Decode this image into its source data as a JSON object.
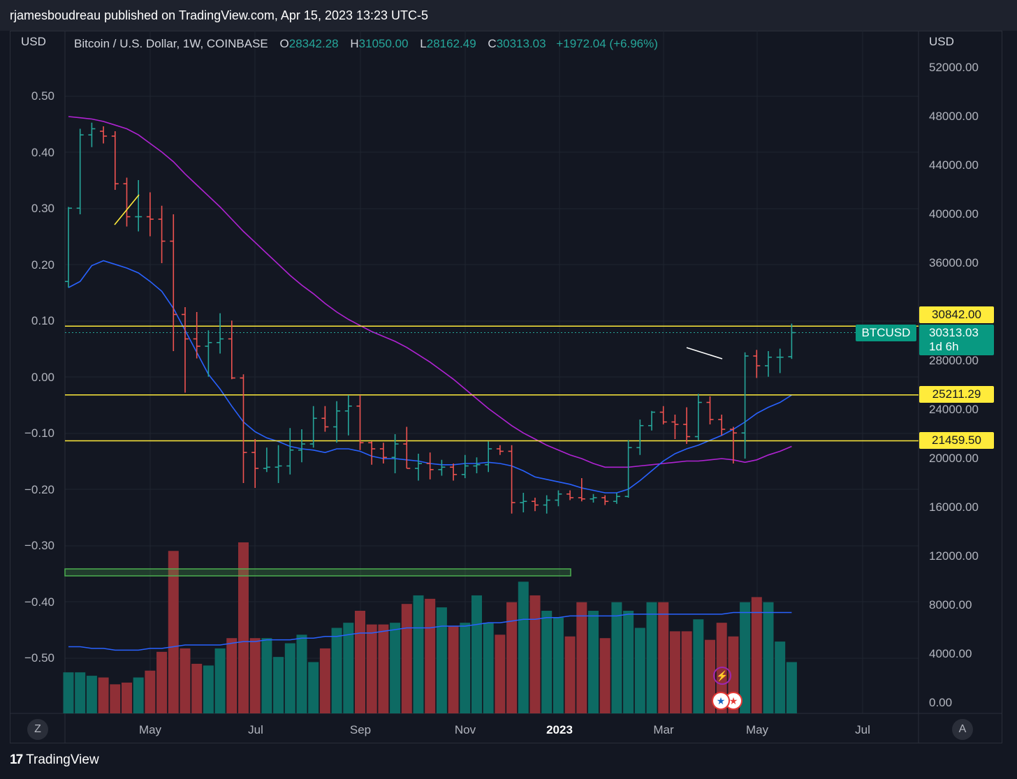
{
  "header": {
    "publish_line": "rjamesboudreau published on TradingView.com, Apr 15, 2023 13:23 UTC-5"
  },
  "legend": {
    "symbol": "Bitcoin / U.S. Dollar, 1W, COINBASE",
    "o_label": "O",
    "o_value": "28342.28",
    "h_label": "H",
    "h_value": "31050.00",
    "l_label": "L",
    "l_value": "28162.49",
    "c_label": "C",
    "c_value": "30313.03",
    "change": "+1972.04 (+6.96%)"
  },
  "left_axis": {
    "title": "USD",
    "ticks": [
      "0.50",
      "0.40",
      "0.30",
      "0.20",
      "0.10",
      "0.00",
      "−0.10",
      "−0.20",
      "−0.30",
      "−0.40",
      "−0.50"
    ]
  },
  "right_axis": {
    "title": "USD",
    "ticks": [
      "52000.00",
      "48000.00",
      "44000.00",
      "40000.00",
      "36000.00",
      "28000.00",
      "24000.00",
      "20000.00",
      "16000.00",
      "12000.00",
      "8000.00",
      "4000.00",
      "0.00"
    ]
  },
  "x_axis": {
    "ticks": [
      "May",
      "Jul",
      "Sep",
      "Nov",
      "2023",
      "Mar",
      "May",
      "Jul"
    ]
  },
  "price_tag": {
    "symbol": "BTCUSD",
    "price": "30313.03",
    "countdown": "1d 6h"
  },
  "level_labels": [
    "30842.00",
    "25211.29",
    "21459.50"
  ],
  "corner_buttons": {
    "left": "Z",
    "right": "A"
  },
  "footer": {
    "logo_mark": "17",
    "brand": "TradingView"
  },
  "colors": {
    "bull": "#26a69a",
    "bear": "#ef5350",
    "bull_volume": "#0d6a63",
    "bear_volume": "#8f2f36",
    "ma_fast": "#2962ff",
    "ma_slow": "#b023d3",
    "level_line": "#ffeb3b",
    "volume_ma": "#2962ff"
  },
  "chart_data": {
    "type": "ohlc",
    "title": "Bitcoin / U.S. Dollar, 1W, COINBASE",
    "ylabel": "USD",
    "ylim": [
      -2000,
      54000
    ],
    "x_ticks": [
      "May",
      "Jul",
      "Sep",
      "Nov",
      "2023",
      "Mar",
      "May",
      "Jul"
    ],
    "ohlc": [
      [
        34500,
        40600,
        34000,
        40500
      ],
      [
        40500,
        47000,
        40000,
        46500
      ],
      [
        46500,
        47500,
        45500,
        47000
      ],
      [
        46800,
        47200,
        45800,
        46400
      ],
      [
        46400,
        46800,
        42000,
        42500
      ],
      [
        42500,
        43000,
        39000,
        39800
      ],
      [
        39800,
        42800,
        38600,
        39800
      ],
      [
        39800,
        41800,
        38200,
        39600
      ],
      [
        39600,
        40700,
        36000,
        37800
      ],
      [
        37800,
        40000,
        28800,
        31800
      ],
      [
        31800,
        32400,
        25400,
        29800
      ],
      [
        29800,
        32000,
        28200,
        29200
      ],
      [
        29200,
        30500,
        26700,
        29500
      ],
      [
        29500,
        31900,
        28600,
        29800
      ],
      [
        29800,
        31300,
        26500,
        26600
      ],
      [
        26600,
        26900,
        18000,
        20500
      ],
      [
        20500,
        21600,
        17600,
        19200
      ],
      [
        19200,
        20900,
        18900,
        19300
      ],
      [
        19300,
        21100,
        18000,
        19400
      ],
      [
        19400,
        22500,
        18700,
        20700
      ],
      [
        20700,
        22400,
        19700,
        21200
      ],
      [
        21200,
        24300,
        20900,
        23300
      ],
      [
        23300,
        24300,
        22200,
        22600
      ],
      [
        22600,
        24700,
        21300,
        23900
      ],
      [
        23900,
        25200,
        21900,
        24300
      ],
      [
        24300,
        25200,
        20700,
        21300
      ],
      [
        21300,
        21400,
        19500,
        20800
      ],
      [
        20800,
        21300,
        19600,
        20100
      ],
      [
        20100,
        22000,
        18800,
        21200
      ],
      [
        21200,
        22600,
        19200,
        19200
      ],
      [
        19200,
        20400,
        18200,
        19600
      ],
      [
        19600,
        20500,
        18300,
        19100
      ],
      [
        19100,
        19900,
        18600,
        19300
      ],
      [
        19300,
        19600,
        18200,
        18700
      ],
      [
        18700,
        20300,
        18400,
        19400
      ],
      [
        19400,
        20100,
        18800,
        19500
      ],
      [
        19500,
        21400,
        18900,
        20800
      ],
      [
        20800,
        21100,
        20300,
        20600
      ],
      [
        20600,
        21100,
        15500,
        16400
      ],
      [
        16400,
        17200,
        15600,
        16500
      ],
      [
        16500,
        16800,
        15700,
        16200
      ],
      [
        16200,
        17000,
        15500,
        16600
      ],
      [
        16600,
        17400,
        16100,
        17100
      ],
      [
        17100,
        17400,
        16600,
        16800
      ],
      [
        16800,
        18400,
        16500,
        16700
      ],
      [
        16700,
        17100,
        16400,
        16800
      ],
      [
        16800,
        17000,
        16200,
        16500
      ],
      [
        16500,
        17200,
        16300,
        16900
      ],
      [
        16900,
        21500,
        16800,
        20900
      ],
      [
        20900,
        23200,
        20300,
        22700
      ],
      [
        22700,
        23900,
        22300,
        23800
      ],
      [
        23800,
        24300,
        22800,
        23000
      ],
      [
        23000,
        23600,
        21600,
        22800
      ],
      [
        22800,
        24200,
        21200,
        21800
      ],
      [
        21800,
        25300,
        21500,
        24600
      ],
      [
        24600,
        25100,
        22800,
        23200
      ],
      [
        23200,
        23600,
        21900,
        22400
      ],
      [
        22400,
        22600,
        19600,
        22100
      ],
      [
        22100,
        28700,
        20000,
        28400
      ],
      [
        28400,
        28900,
        26600,
        27600
      ],
      [
        27600,
        28800,
        26700,
        28300
      ],
      [
        28300,
        29000,
        27000,
        28300
      ],
      [
        28342.28,
        31050.0,
        28162.49,
        30313.03
      ]
    ],
    "ma_fast": [
      34000,
      34500,
      35800,
      36200,
      35900,
      35600,
      35200,
      34500,
      33700,
      32300,
      30500,
      28700,
      26900,
      25700,
      24300,
      23000,
      22200,
      21700,
      21400,
      21000,
      20800,
      20700,
      20500,
      20800,
      20800,
      20600,
      20200,
      20000,
      20000,
      19900,
      19800,
      19600,
      19500,
      19500,
      19600,
      19600,
      19700,
      19600,
      19400,
      19000,
      18500,
      18300,
      18100,
      17900,
      17600,
      17400,
      17200,
      17200,
      17500,
      18200,
      19000,
      19800,
      20400,
      20800,
      21100,
      21500,
      21900,
      22400,
      23000,
      23700,
      24200,
      24600,
      25200
    ],
    "ma_slow": [
      48000,
      47900,
      47800,
      47600,
      47300,
      47000,
      46500,
      45800,
      45100,
      44300,
      43300,
      42400,
      41500,
      40600,
      39600,
      38600,
      37700,
      36800,
      35900,
      35000,
      34200,
      33500,
      32700,
      32000,
      31400,
      30900,
      30400,
      30000,
      29600,
      29100,
      28500,
      27900,
      27200,
      26500,
      25700,
      24900,
      24100,
      23400,
      22700,
      22100,
      21600,
      21100,
      20700,
      20300,
      20000,
      19600,
      19300,
      19300,
      19300,
      19400,
      19500,
      19600,
      19700,
      19800,
      19800,
      19900,
      20000,
      19900,
      19700,
      19900,
      20300,
      20600,
      21000
    ],
    "levels": [
      30842.0,
      25211.29,
      21459.5
    ],
    "volume_units": "relative",
    "volume": [
      0.24,
      0.24,
      0.22,
      0.21,
      0.17,
      0.18,
      0.21,
      0.25,
      0.36,
      0.95,
      0.38,
      0.29,
      0.28,
      0.38,
      0.44,
      1.0,
      0.44,
      0.44,
      0.33,
      0.41,
      0.46,
      0.3,
      0.38,
      0.5,
      0.53,
      0.6,
      0.52,
      0.52,
      0.53,
      0.64,
      0.69,
      0.67,
      0.62,
      0.51,
      0.53,
      0.69,
      0.53,
      0.46,
      0.65,
      0.77,
      0.69,
      0.6,
      0.56,
      0.45,
      0.65,
      0.6,
      0.44,
      0.65,
      0.6,
      0.5,
      0.65,
      0.65,
      0.48,
      0.48,
      0.55,
      0.43,
      0.53,
      0.45,
      0.65,
      0.68,
      0.65,
      0.42,
      0.3
    ],
    "volume_ma": [
      0.39,
      0.39,
      0.38,
      0.38,
      0.37,
      0.37,
      0.37,
      0.38,
      0.38,
      0.39,
      0.4,
      0.4,
      0.4,
      0.4,
      0.41,
      0.42,
      0.42,
      0.43,
      0.43,
      0.43,
      0.44,
      0.44,
      0.45,
      0.45,
      0.46,
      0.47,
      0.47,
      0.48,
      0.49,
      0.5,
      0.5,
      0.5,
      0.51,
      0.51,
      0.51,
      0.52,
      0.53,
      0.53,
      0.54,
      0.55,
      0.55,
      0.56,
      0.56,
      0.57,
      0.57,
      0.57,
      0.57,
      0.57,
      0.58,
      0.58,
      0.58,
      0.58,
      0.58,
      0.58,
      0.58,
      0.58,
      0.58,
      0.59,
      0.59,
      0.59,
      0.59,
      0.59,
      0.59
    ]
  }
}
